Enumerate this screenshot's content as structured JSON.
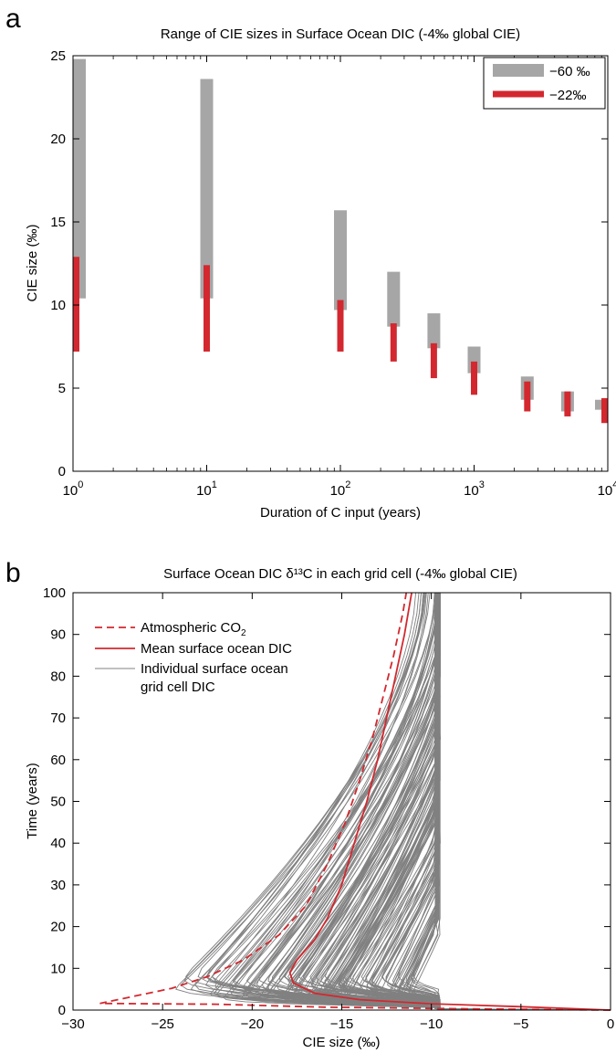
{
  "chart_data": [
    {
      "panel_label": "a",
      "type": "bar",
      "subtype": "range-bars",
      "title": "Range of CIE sizes in Surface Ocean DIC (-4‰ global CIE)",
      "xlabel": "Duration of C input (years)",
      "ylabel": "CIE size (‰)",
      "xscale": "log",
      "xlim": [
        1,
        10000
      ],
      "ylim": [
        0,
        25
      ],
      "xticks": [
        {
          "value": 1,
          "base": "10",
          "exp": "0"
        },
        {
          "value": 10,
          "base": "10",
          "exp": "1"
        },
        {
          "value": 100,
          "base": "10",
          "exp": "2"
        },
        {
          "value": 1000,
          "base": "10",
          "exp": "3"
        },
        {
          "value": 10000,
          "base": "10",
          "exp": "4"
        }
      ],
      "yticks": [
        {
          "value": 0,
          "label": "0"
        },
        {
          "value": 5,
          "label": "5"
        },
        {
          "value": 10,
          "label": "10"
        },
        {
          "value": 15,
          "label": "15"
        },
        {
          "value": 20,
          "label": "20"
        },
        {
          "value": 25,
          "label": "25"
        }
      ],
      "legend_placement": "top-right",
      "series": [
        {
          "name": "−60 ‰",
          "color": "#a6a6a6",
          "ranges": [
            {
              "x": 1,
              "low": 10.4,
              "high": 24.8
            },
            {
              "x": 10,
              "low": 10.4,
              "high": 23.6
            },
            {
              "x": 100,
              "low": 9.7,
              "high": 15.7
            },
            {
              "x": 250,
              "low": 8.7,
              "high": 12.0
            },
            {
              "x": 500,
              "low": 7.4,
              "high": 9.5
            },
            {
              "x": 1000,
              "low": 5.9,
              "high": 7.5
            },
            {
              "x": 2500,
              "low": 4.3,
              "high": 5.7
            },
            {
              "x": 5000,
              "low": 3.6,
              "high": 4.8
            },
            {
              "x": 10000,
              "low": 3.7,
              "high": 4.3
            }
          ]
        },
        {
          "name": "−22‰",
          "color": "#d3282f",
          "ranges": [
            {
              "x": 1,
              "low": 7.2,
              "high": 12.9
            },
            {
              "x": 10,
              "low": 7.2,
              "high": 12.4
            },
            {
              "x": 100,
              "low": 7.2,
              "high": 10.3
            },
            {
              "x": 250,
              "low": 6.6,
              "high": 8.9
            },
            {
              "x": 500,
              "low": 5.6,
              "high": 7.7
            },
            {
              "x": 1000,
              "low": 4.6,
              "high": 6.6
            },
            {
              "x": 2500,
              "low": 3.6,
              "high": 5.4
            },
            {
              "x": 5000,
              "low": 3.3,
              "high": 4.8
            },
            {
              "x": 10000,
              "low": 2.9,
              "high": 4.4
            }
          ]
        }
      ]
    },
    {
      "panel_label": "b",
      "type": "line",
      "title": "Surface Ocean DIC δ¹³C in each grid cell (-4‰ global CIE)",
      "xlabel": "CIE size (‰)",
      "ylabel": "Time (years)",
      "xlim": [
        -30,
        0
      ],
      "ylim": [
        0,
        100
      ],
      "xticks": [
        {
          "value": -30,
          "label": "−30"
        },
        {
          "value": -25,
          "label": "−25"
        },
        {
          "value": -20,
          "label": "−20"
        },
        {
          "value": -15,
          "label": "−15"
        },
        {
          "value": -10,
          "label": "−10"
        },
        {
          "value": -5,
          "label": "−5"
        },
        {
          "value": 0,
          "label": "0"
        }
      ],
      "yticks": [
        {
          "value": 0,
          "label": "0"
        },
        {
          "value": 10,
          "label": "10"
        },
        {
          "value": 20,
          "label": "20"
        },
        {
          "value": 30,
          "label": "30"
        },
        {
          "value": 40,
          "label": "40"
        },
        {
          "value": 50,
          "label": "50"
        },
        {
          "value": 60,
          "label": "60"
        },
        {
          "value": 70,
          "label": "70"
        },
        {
          "value": 80,
          "label": "80"
        },
        {
          "value": 90,
          "label": "90"
        },
        {
          "value": 100,
          "label": "100"
        }
      ],
      "legend_placement": "top-left",
      "legend": [
        {
          "text": "Atmospheric CO",
          "sub": "2",
          "style": "dashed",
          "color": "#d3282f"
        },
        {
          "text": "Mean surface ocean DIC",
          "sub": "",
          "style": "solid",
          "color": "#d3282f"
        },
        {
          "text": "Individual surface ocean",
          "text2": "grid cell DIC",
          "sub": "",
          "style": "thin",
          "color": "#808080"
        }
      ],
      "series": [
        {
          "name": "Atmospheric CO2",
          "color": "#d3282f",
          "style": "dashed",
          "points": [
            [
              0,
              0
            ],
            [
              -8,
              0.3
            ],
            [
              -16,
              0.7
            ],
            [
              -22,
              1.4
            ],
            [
              -28.5,
              1.6
            ],
            [
              -24.5,
              5.2
            ],
            [
              -22.5,
              8.0
            ],
            [
              -20.5,
              12.0
            ],
            [
              -18.5,
              18.0
            ],
            [
              -17.0,
              25.0
            ],
            [
              -15.8,
              35.0
            ],
            [
              -14.8,
              45.0
            ],
            [
              -14.0,
              55.0
            ],
            [
              -13.3,
              65.0
            ],
            [
              -12.7,
              75.0
            ],
            [
              -12.1,
              85.0
            ],
            [
              -11.6,
              95.0
            ],
            [
              -11.4,
              100.0
            ]
          ]
        },
        {
          "name": "Mean surface ocean DIC",
          "color": "#d3282f",
          "style": "solid",
          "points": [
            [
              0,
              0
            ],
            [
              -5,
              0.8
            ],
            [
              -10,
              1.5
            ],
            [
              -14,
              2.5
            ],
            [
              -16.5,
              4.0
            ],
            [
              -17.7,
              6.5
            ],
            [
              -17.9,
              9.0
            ],
            [
              -17.5,
              12.0
            ],
            [
              -16.5,
              17.0
            ],
            [
              -15.8,
              22.0
            ],
            [
              -15.0,
              30.0
            ],
            [
              -14.3,
              40.0
            ],
            [
              -13.6,
              50.0
            ],
            [
              -13.0,
              60.0
            ],
            [
              -12.5,
              70.0
            ],
            [
              -12.0,
              80.0
            ],
            [
              -11.5,
              90.0
            ],
            [
              -11.1,
              100.0
            ]
          ]
        },
        {
          "name": "Individual surface ocean grid cell DIC",
          "color": "#808080",
          "style": "thin",
          "envelope": {
            "leftmost_x": -24.6,
            "rightmost_x": -9.5,
            "count": "many"
          }
        }
      ]
    }
  ]
}
